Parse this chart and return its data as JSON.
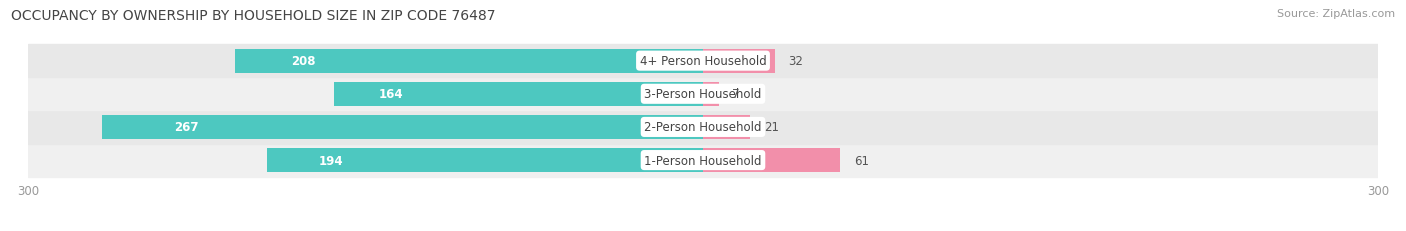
{
  "title": "OCCUPANCY BY OWNERSHIP BY HOUSEHOLD SIZE IN ZIP CODE 76487",
  "source": "Source: ZipAtlas.com",
  "categories": [
    "1-Person Household",
    "2-Person Household",
    "3-Person Household",
    "4+ Person Household"
  ],
  "owner_values": [
    194,
    267,
    164,
    208
  ],
  "renter_values": [
    61,
    21,
    7,
    32
  ],
  "owner_color": "#4DC8C0",
  "renter_color": "#F28FAA",
  "row_bg_colors": [
    "#F0F0F0",
    "#E8E8E8",
    "#F0F0F0",
    "#E8E8E8"
  ],
  "x_max": 300,
  "title_fontsize": 10,
  "source_fontsize": 8,
  "tick_fontsize": 8.5,
  "bar_label_fontsize": 8.5,
  "legend_fontsize": 8.5,
  "category_fontsize": 8.5,
  "owner_label_color_inside": "#FFFFFF",
  "owner_label_color_outside": "#555555",
  "renter_label_color": "#555555",
  "tick_color": "#999999"
}
